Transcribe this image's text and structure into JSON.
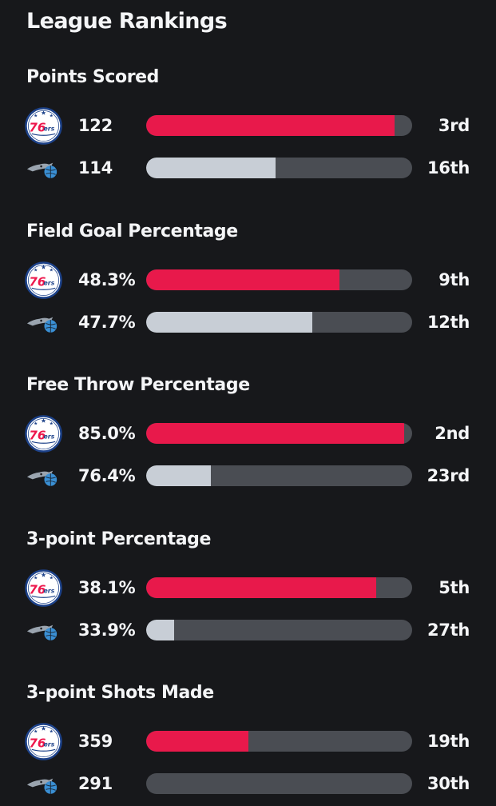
{
  "title": "League Rankings",
  "colors": {
    "background": "#17181b",
    "sixers_bar": "#e8194b",
    "magic_bar": "#c8ced6",
    "track": "#4a4d53"
  },
  "teams": {
    "sixers": {
      "logo_icon": "sixers-logo-icon",
      "logo_text": "76ers"
    },
    "magic": {
      "logo_icon": "magic-logo-icon"
    }
  },
  "sections": [
    {
      "title": "Points Scored",
      "rows": [
        {
          "team": "sixers",
          "value": "122",
          "fill": 0.935,
          "rank": "3rd"
        },
        {
          "team": "magic",
          "value": "114",
          "fill": 0.485,
          "rank": "16th"
        }
      ]
    },
    {
      "title": "Field Goal Percentage",
      "rows": [
        {
          "team": "sixers",
          "value": "48.3%",
          "fill": 0.727,
          "rank": "9th"
        },
        {
          "team": "magic",
          "value": "47.7%",
          "fill": 0.625,
          "rank": "12th"
        }
      ]
    },
    {
      "title": "Free Throw Percentage",
      "rows": [
        {
          "team": "sixers",
          "value": "85.0%",
          "fill": 0.97,
          "rank": "2nd"
        },
        {
          "team": "magic",
          "value": "76.4%",
          "fill": 0.243,
          "rank": "23rd"
        }
      ]
    },
    {
      "title": "3-point Percentage",
      "rows": [
        {
          "team": "sixers",
          "value": "38.1%",
          "fill": 0.865,
          "rank": "5th"
        },
        {
          "team": "magic",
          "value": "33.9%",
          "fill": 0.105,
          "rank": "27th"
        }
      ]
    },
    {
      "title": "3-point Shots Made",
      "rows": [
        {
          "team": "sixers",
          "value": "359",
          "fill": 0.385,
          "rank": "19th"
        },
        {
          "team": "magic",
          "value": "291",
          "fill": 0.0,
          "rank": "30th"
        }
      ]
    }
  ]
}
